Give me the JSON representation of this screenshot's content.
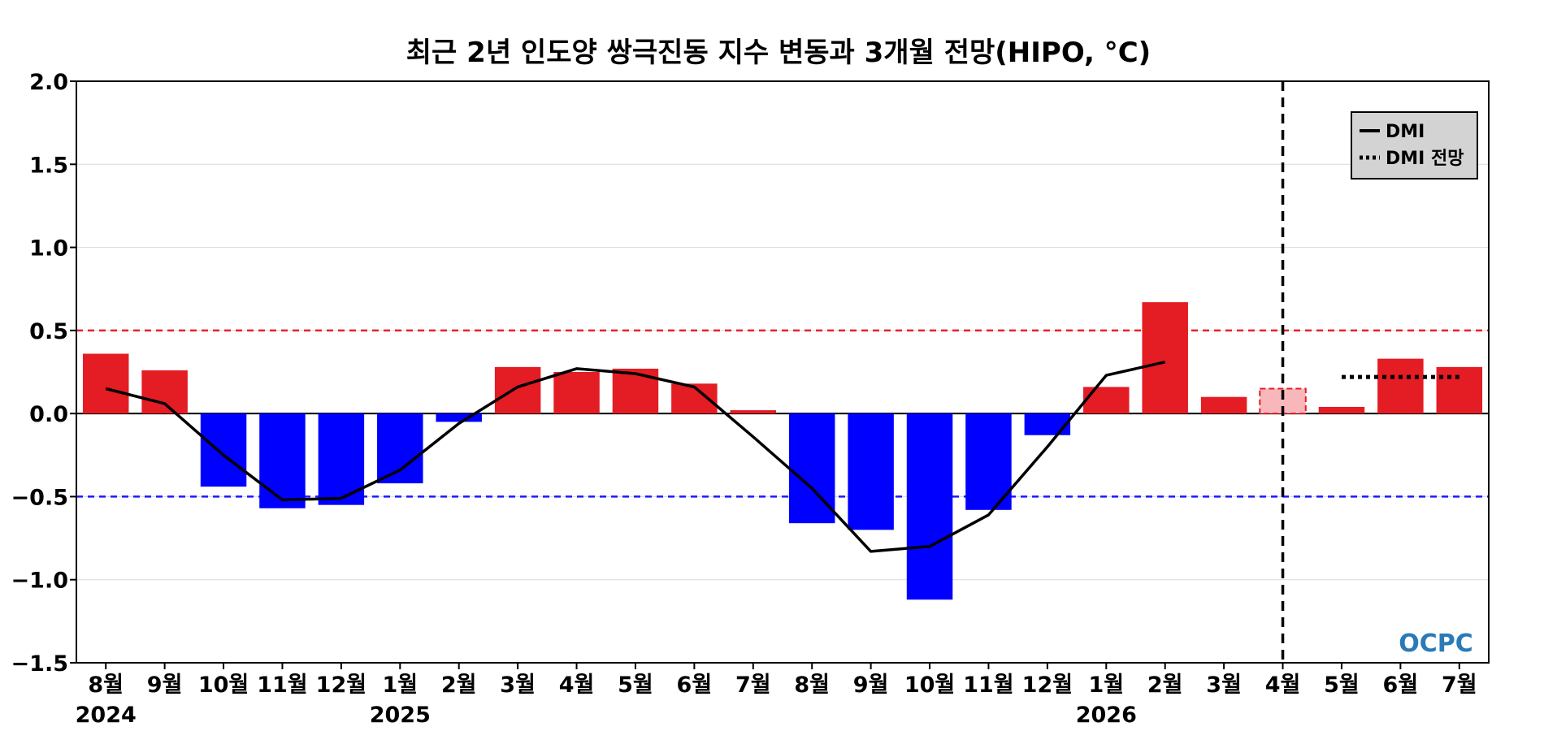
{
  "chart_data": {
    "type": "bar",
    "title": "최근 2년 인도양 쌍극진동 지수 변동과 3개월 전망(HIPO, °C)",
    "categories": [
      "8월",
      "9월",
      "10월",
      "11월",
      "12월",
      "1월",
      "2월",
      "3월",
      "4월",
      "5월",
      "6월",
      "7월",
      "8월",
      "9월",
      "10월",
      "11월",
      "12월",
      "1월",
      "2월",
      "3월",
      "4월",
      "5월",
      "6월",
      "7월"
    ],
    "year_labels": [
      {
        "index": 0,
        "label": "2024"
      },
      {
        "index": 5,
        "label": "2025"
      },
      {
        "index": 17,
        "label": "2026"
      }
    ],
    "bars": [
      0.36,
      0.26,
      -0.44,
      -0.57,
      -0.55,
      -0.42,
      -0.05,
      0.28,
      0.25,
      0.27,
      0.18,
      0.02,
      -0.66,
      -0.7,
      -1.12,
      -0.58,
      -0.13,
      0.16,
      0.67,
      0.1,
      0.15,
      0.04,
      0.33,
      0.28
    ],
    "highlighted_bar_index": 20,
    "series": [
      {
        "name": "DMI",
        "style": "solid",
        "values": [
          0.15,
          0.06,
          -0.25,
          -0.52,
          -0.51,
          -0.34,
          -0.06,
          0.16,
          0.27,
          0.24,
          0.16,
          -0.14,
          -0.45,
          -0.83,
          -0.8,
          -0.61,
          -0.2,
          0.23,
          0.31,
          null,
          null,
          null,
          null,
          null
        ]
      },
      {
        "name": "DMI 전망",
        "style": "dotted",
        "values": [
          null,
          null,
          null,
          null,
          null,
          null,
          null,
          null,
          null,
          null,
          null,
          null,
          null,
          null,
          null,
          null,
          null,
          null,
          null,
          null,
          null,
          0.22,
          0.22,
          0.22
        ]
      }
    ],
    "yticks": [
      "2.0",
      "1.5",
      "1.0",
      "0.5",
      "0.0",
      "−0.5",
      "−1.0",
      "−1.5"
    ],
    "ylim": [
      -1.5,
      2.0
    ],
    "thresholds": [
      {
        "value": 0.5,
        "color": "#e8202a"
      },
      {
        "value": -0.5,
        "color": "#1a1aff"
      }
    ],
    "forecast_divider_index": 20,
    "grid": true,
    "legend_position": "top-right",
    "xlabel": "",
    "ylabel": ""
  },
  "colors": {
    "positive": "#e41c23",
    "negative": "#0000ff",
    "highlight_fill": "#f8b8bb",
    "highlight_stroke": "#e41c23",
    "line": "#000000",
    "grid": "#d9d9d9",
    "legend_bg": "#d3d3d3"
  },
  "logo": {
    "text": "OCPC"
  }
}
